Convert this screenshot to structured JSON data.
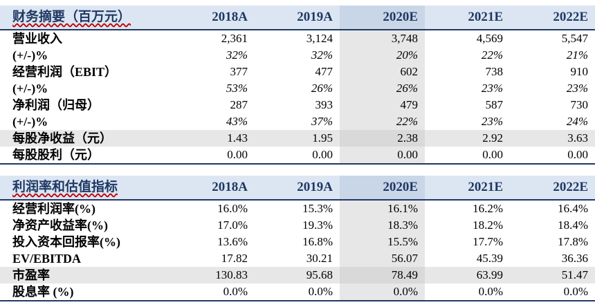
{
  "table1": {
    "header": [
      "财务摘要（百万元）",
      "2018A",
      "2019A",
      "2020E",
      "2021E",
      "2022E"
    ],
    "rows": [
      {
        "label": "营业收入",
        "values": [
          "2,361",
          "3,124",
          "3,748",
          "4,569",
          "5,547"
        ]
      },
      {
        "label": "(+/-)%",
        "values": [
          "32%",
          "32%",
          "20%",
          "22%",
          "21%"
        ]
      },
      {
        "label": "经营利润（EBIT）",
        "values": [
          "377",
          "477",
          "602",
          "738",
          "910"
        ]
      },
      {
        "label": "(+/-)%",
        "values": [
          "53%",
          "26%",
          "26%",
          "23%",
          "23%"
        ]
      },
      {
        "label": "净利润（归母）",
        "values": [
          "287",
          "393",
          "479",
          "587",
          "730"
        ]
      },
      {
        "label": "(+/-)%",
        "values": [
          "43%",
          "37%",
          "22%",
          "23%",
          "24%"
        ]
      },
      {
        "label": "每股净收益（元）",
        "values": [
          "1.43",
          "1.95",
          "2.38",
          "2.92",
          "3.63"
        ]
      },
      {
        "label": "每股股利（元）",
        "values": [
          "0.00",
          "0.00",
          "0.00",
          "0.00",
          "0.00"
        ]
      }
    ]
  },
  "table2": {
    "header": [
      "利润率和估值指标",
      "2018A",
      "2019A",
      "2020E",
      "2021E",
      "2022E"
    ],
    "rows": [
      {
        "label": "经营利润率(%)",
        "values": [
          "16.0%",
          "15.3%",
          "16.1%",
          "16.2%",
          "16.4%"
        ]
      },
      {
        "label": "净资产收益率(%)",
        "values": [
          "17.0%",
          "19.3%",
          "18.3%",
          "18.2%",
          "18.4%"
        ]
      },
      {
        "label": "投入资本回报率(%)",
        "values": [
          "13.6%",
          "16.8%",
          "15.5%",
          "17.7%",
          "17.8%"
        ]
      },
      {
        "label": "EV/EBITDA",
        "values": [
          "17.82",
          "30.21",
          "56.07",
          "45.39",
          "36.36"
        ]
      },
      {
        "label": "市盈率",
        "values": [
          "130.83",
          "95.68",
          "78.49",
          "63.99",
          "51.47"
        ]
      },
      {
        "label": "股息率 (%)",
        "values": [
          "0.0%",
          "0.0%",
          "0.0%",
          "0.0%",
          "0.0%"
        ]
      }
    ]
  }
}
